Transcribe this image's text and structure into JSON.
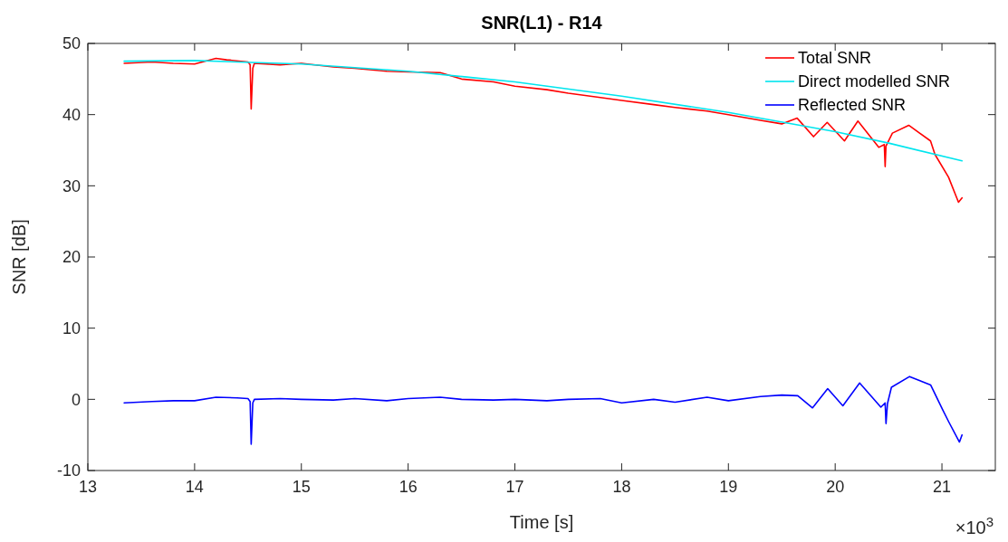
{
  "chart_data": {
    "type": "line",
    "title": "SNR(L1) - R14",
    "xlabel": "Time [s]",
    "ylabel": "SNR [dB]",
    "annotations": [
      "×10$^{3}$"
    ],
    "xlim": [
      13,
      21.5
    ],
    "ylim": [
      -10,
      50
    ],
    "xticks": [
      13,
      14,
      15,
      16,
      17,
      18,
      19,
      20,
      21
    ],
    "yticks": [
      -10,
      0,
      10,
      20,
      30,
      40,
      50
    ],
    "grid": false,
    "legend": "top right",
    "line_style": "solid",
    "marker": "none",
    "series": [
      {
        "name": "Total SNR",
        "color": "#ff0000",
        "x": [
          13.34,
          13.6,
          13.8,
          14.0,
          14.2,
          14.3,
          14.5,
          14.52,
          14.53,
          14.545,
          14.56,
          14.8,
          15.0,
          15.3,
          15.5,
          15.8,
          16.0,
          16.3,
          16.5,
          16.8,
          17.0,
          17.3,
          17.5,
          17.8,
          18.0,
          18.3,
          18.5,
          18.8,
          19.0,
          19.3,
          19.5,
          19.644,
          19.797,
          19.925,
          20.087,
          20.213,
          20.408,
          20.46,
          20.468,
          20.476,
          20.49,
          20.536,
          20.689,
          20.893,
          20.935,
          21.062,
          21.155,
          21.188
        ],
        "values": [
          47.2,
          47.4,
          47.2,
          47.1,
          47.9,
          47.7,
          47.4,
          47.0,
          40.8,
          46.5,
          47.2,
          47.0,
          47.2,
          46.7,
          46.5,
          46.1,
          46.0,
          45.9,
          45.0,
          44.6,
          44.0,
          43.5,
          43.0,
          42.4,
          42.0,
          41.4,
          41.0,
          40.5,
          40.0,
          39.2,
          38.7,
          39.5,
          36.9,
          38.9,
          36.3,
          39.1,
          35.4,
          35.8,
          32.7,
          35.6,
          36.0,
          37.4,
          38.5,
          36.3,
          34.4,
          31.2,
          27.7,
          28.3
        ]
      },
      {
        "name": "Direct modelled SNR",
        "color": "#00e5ee",
        "x": [
          13.34,
          14.0,
          15.0,
          16.0,
          17.0,
          18.0,
          19.0,
          20.0,
          20.5,
          21.188
        ],
        "values": [
          47.5,
          47.6,
          47.1,
          46.1,
          44.6,
          42.6,
          40.3,
          37.6,
          36.0,
          33.5
        ]
      },
      {
        "name": "Reflected SNR",
        "color": "#0000ff",
        "x": [
          13.34,
          13.6,
          13.8,
          14.0,
          14.2,
          14.4,
          14.5,
          14.52,
          14.53,
          14.545,
          14.56,
          14.8,
          15.0,
          15.3,
          15.5,
          15.8,
          16.0,
          16.3,
          16.5,
          16.8,
          17.0,
          17.3,
          17.5,
          17.8,
          18.0,
          18.3,
          18.5,
          18.8,
          19.0,
          19.3,
          19.5,
          19.65,
          19.788,
          19.93,
          20.072,
          20.229,
          20.428,
          20.468,
          20.476,
          20.49,
          20.527,
          20.697,
          20.895,
          21.008,
          21.065,
          21.164,
          21.188
        ],
        "values": [
          -0.5,
          -0.3,
          -0.2,
          -0.2,
          0.3,
          0.2,
          0.1,
          -0.3,
          -6.3,
          -0.5,
          0.0,
          0.1,
          0.0,
          -0.1,
          0.1,
          -0.2,
          0.1,
          0.3,
          0.0,
          -0.1,
          0.0,
          -0.2,
          0.0,
          0.1,
          -0.5,
          0.0,
          -0.4,
          0.3,
          -0.2,
          0.4,
          0.6,
          0.5,
          -1.2,
          1.5,
          -0.9,
          2.3,
          -1.1,
          -0.5,
          -3.4,
          -0.6,
          1.7,
          3.2,
          2.0,
          -1.5,
          -3.2,
          -6.0,
          -5.0
        ]
      }
    ]
  }
}
